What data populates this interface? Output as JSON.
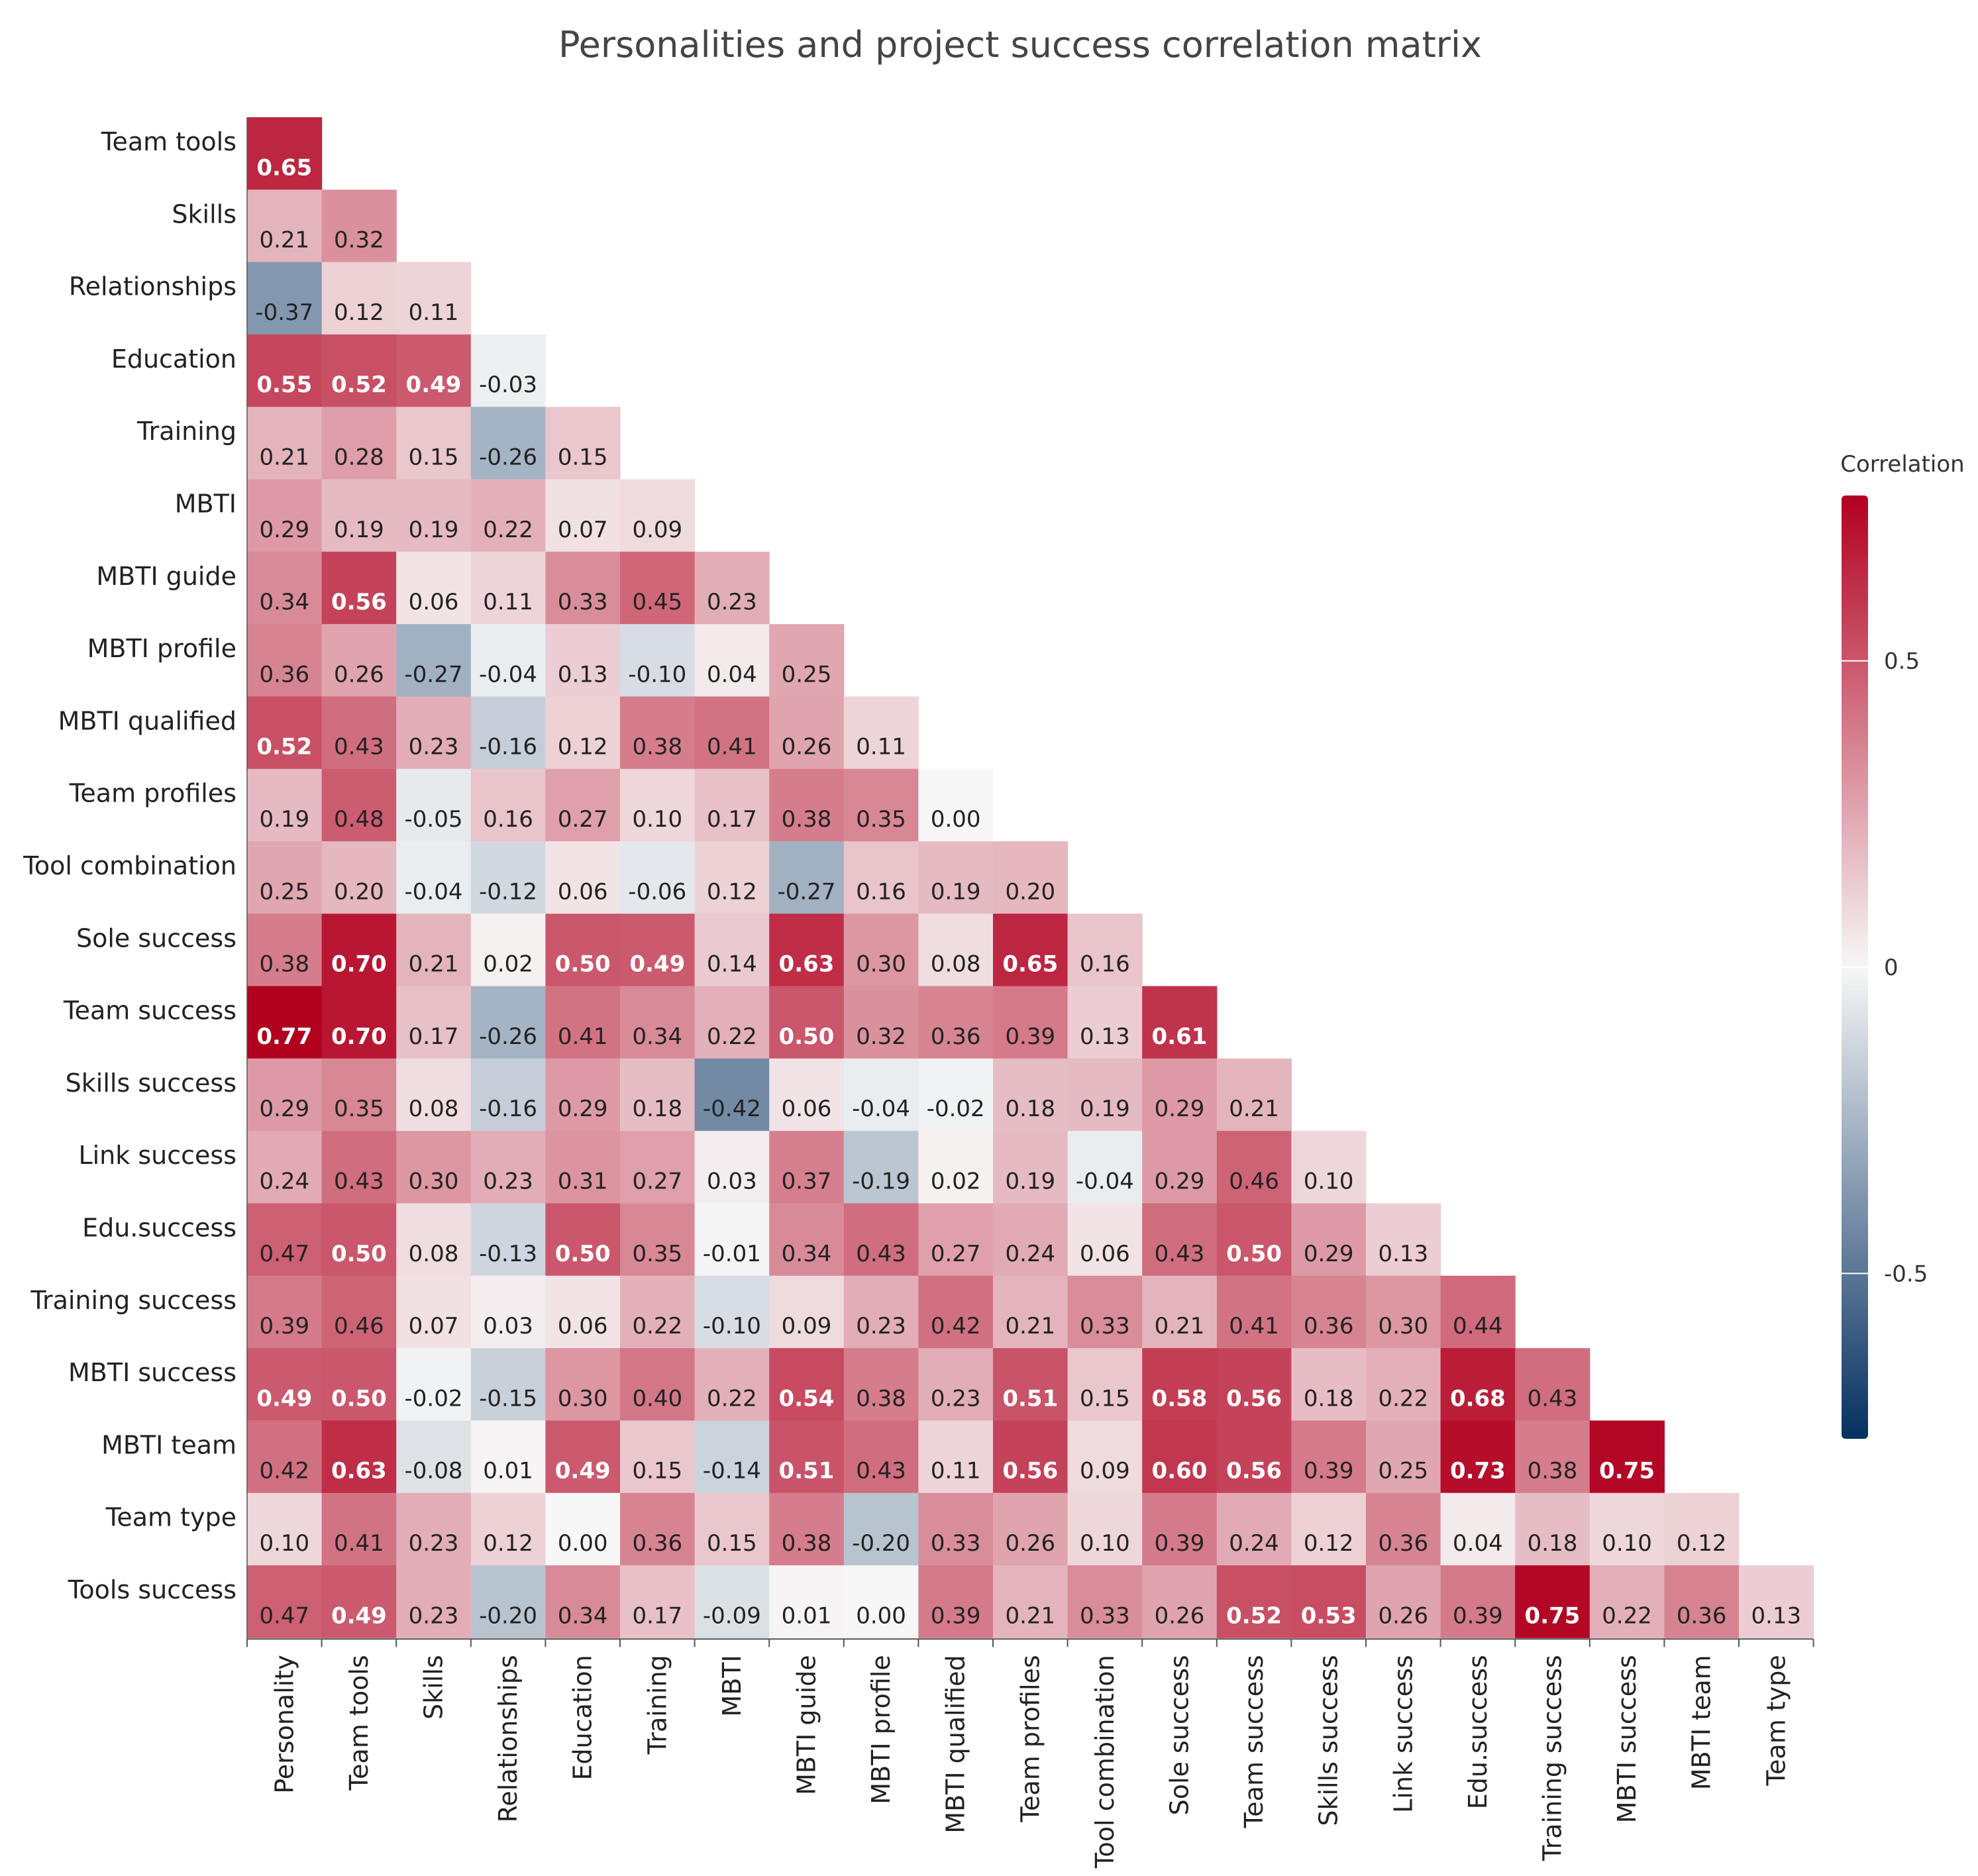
{
  "chart_data": {
    "type": "heatmap",
    "title": "Personalities and project success correlation matrix",
    "row_labels": [
      "Team tools",
      "Skills",
      "Relationships",
      "Education",
      "Training",
      "MBTI",
      "MBTI guide",
      "MBTI profile",
      "MBTI qualified",
      "Team profiles",
      "Tool combination",
      "Sole success",
      "Team success",
      "Skills success",
      "Link success",
      "Edu.success",
      "Training success",
      "MBTI success",
      "MBTI team",
      "Team type",
      "Tools success"
    ],
    "col_labels": [
      "Personality",
      "Team tools",
      "Skills",
      "Relationships",
      "Education",
      "Training",
      "MBTI",
      "MBTI guide",
      "MBTI profile",
      "MBTI qualified",
      "Team profiles",
      "Tool combination",
      "Sole success",
      "Team success",
      "Skills success",
      "Link success",
      "Edu.success",
      "Training success",
      "MBTI success",
      "MBTI team",
      "Team type"
    ],
    "values": [
      [
        "0.65"
      ],
      [
        "0.21",
        "0.32"
      ],
      [
        "-0.37",
        "0.12",
        "0.11"
      ],
      [
        "0.55",
        "0.52",
        "0.49",
        "-0.03"
      ],
      [
        "0.21",
        "0.28",
        "0.15",
        "-0.26",
        "0.15"
      ],
      [
        "0.29",
        "0.19",
        "0.19",
        "0.22",
        "0.07",
        "0.09"
      ],
      [
        "0.34",
        "0.56",
        "0.06",
        "0.11",
        "0.33",
        "0.45",
        "0.23"
      ],
      [
        "0.36",
        "0.26",
        "-0.27",
        "-0.04",
        "0.13",
        "-0.10",
        "0.04",
        "0.25"
      ],
      [
        "0.52",
        "0.43",
        "0.23",
        "-0.16",
        "0.12",
        "0.38",
        "0.41",
        "0.26",
        "0.11"
      ],
      [
        "0.19",
        "0.48",
        "-0.05",
        "0.16",
        "0.27",
        "0.10",
        "0.17",
        "0.38",
        "0.35",
        "0.00"
      ],
      [
        "0.25",
        "0.20",
        "-0.04",
        "-0.12",
        "0.06",
        "-0.06",
        "0.12",
        "-0.27",
        "0.16",
        "0.19",
        "0.20"
      ],
      [
        "0.38",
        "0.70",
        "0.21",
        "0.02",
        "0.50",
        "0.49",
        "0.14",
        "0.63",
        "0.30",
        "0.08",
        "0.65",
        "0.16"
      ],
      [
        "0.77",
        "0.70",
        "0.17",
        "-0.26",
        "0.41",
        "0.34",
        "0.22",
        "0.50",
        "0.32",
        "0.36",
        "0.39",
        "0.13",
        "0.61"
      ],
      [
        "0.29",
        "0.35",
        "0.08",
        "-0.16",
        "0.29",
        "0.18",
        "-0.42",
        "0.06",
        "-0.04",
        "-0.02",
        "0.18",
        "0.19",
        "0.29",
        "0.21"
      ],
      [
        "0.24",
        "0.43",
        "0.30",
        "0.23",
        "0.31",
        "0.27",
        "0.03",
        "0.37",
        "-0.19",
        "0.02",
        "0.19",
        "-0.04",
        "0.29",
        "0.46",
        "0.10"
      ],
      [
        "0.47",
        "0.50",
        "0.08",
        "-0.13",
        "0.50",
        "0.35",
        "-0.01",
        "0.34",
        "0.43",
        "0.27",
        "0.24",
        "0.06",
        "0.43",
        "0.50",
        "0.29",
        "0.13"
      ],
      [
        "0.39",
        "0.46",
        "0.07",
        "0.03",
        "0.06",
        "0.22",
        "-0.10",
        "0.09",
        "0.23",
        "0.42",
        "0.21",
        "0.33",
        "0.21",
        "0.41",
        "0.36",
        "0.30",
        "0.44"
      ],
      [
        "0.49",
        "0.50",
        "-0.02",
        "-0.15",
        "0.30",
        "0.40",
        "0.22",
        "0.54",
        "0.38",
        "0.23",
        "0.51",
        "0.15",
        "0.58",
        "0.56",
        "0.18",
        "0.22",
        "0.68",
        "0.43"
      ],
      [
        "0.42",
        "0.63",
        "-0.08",
        "0.01",
        "0.49",
        "0.15",
        "-0.14",
        "0.51",
        "0.43",
        "0.11",
        "0.56",
        "0.09",
        "0.60",
        "0.56",
        "0.39",
        "0.25",
        "0.73",
        "0.38",
        "0.75"
      ],
      [
        "0.10",
        "0.41",
        "0.23",
        "0.12",
        "0.00",
        "0.36",
        "0.15",
        "0.38",
        "-0.20",
        "0.33",
        "0.26",
        "0.10",
        "0.39",
        "0.24",
        "0.12",
        "0.36",
        "0.04",
        "0.18",
        "0.10",
        "0.12"
      ],
      [
        "0.47",
        "0.49",
        "0.23",
        "-0.20",
        "0.34",
        "0.17",
        "-0.09",
        "0.01",
        "0.00",
        "0.39",
        "0.21",
        "0.33",
        "0.26",
        "0.52",
        "0.53",
        "0.26",
        "0.39",
        "0.75",
        "0.22",
        "0.36",
        "0.13"
      ]
    ],
    "color_scale": {
      "min": -0.77,
      "max": 0.77,
      "low_color": "#053061",
      "mid_color": "#f7f7f7",
      "high_color": "#b2001f"
    },
    "legend": {
      "title": "Correlation",
      "ticks": [
        "0.5",
        "0",
        "-0.5"
      ],
      "tick_values": [
        0.5,
        0,
        -0.5
      ],
      "position": "right"
    }
  }
}
